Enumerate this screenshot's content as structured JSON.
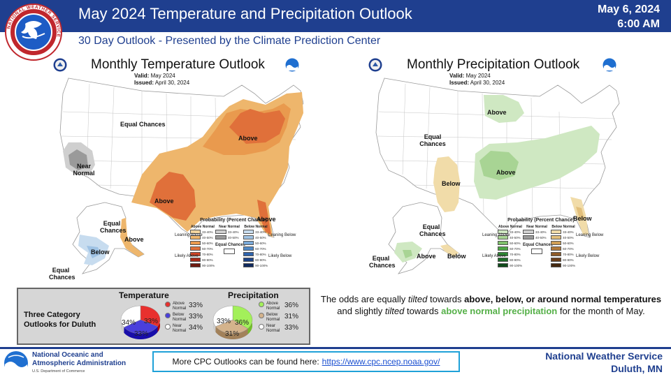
{
  "header": {
    "title": "May 2024 Temperature and Precipitation Outlook",
    "date": "May 6, 2024",
    "time": "6:00 AM",
    "subtitle": "30 Day Outlook - Presented by the Climate Prediction Center",
    "logo_text": "NATIONAL WEATHER SERVICE"
  },
  "temp_map": {
    "title": "Monthly Temperature Outlook",
    "valid_label": "Valid:",
    "valid_value": "May 2024",
    "issued_label": "Issued:",
    "issued_value": "April 30, 2024",
    "labels": {
      "equal_chances_w": "Equal Chances",
      "near_normal": "Near Normal",
      "above_ne": "Above",
      "above_s": "Above",
      "above_fl": "Above",
      "equal_chances_ak": "Equal Chances",
      "above_ak": "Above",
      "below_ak": "Below",
      "equal_chances_ak2": "Equal Chances"
    },
    "legend": {
      "title": "Probability (Percent Chance)",
      "col_above": "Above Normal",
      "col_near": "Near Normal",
      "col_below": "Below Normal",
      "leaning": "Leaning Above",
      "likely": "Likely Above",
      "leaning_b": "Leaning Below",
      "likely_b": "Likely Below",
      "equal": "Equal Chances",
      "rows": [
        "33-40%",
        "40-50%",
        "50-60%",
        "60-70%",
        "70-80%",
        "80-90%",
        "90-100%"
      ],
      "near_rows": [
        "33-40%",
        "40-50%"
      ],
      "above_colors": [
        "#f3d6a0",
        "#eeb66c",
        "#e99a4e",
        "#e0703a",
        "#cf4527",
        "#a82b1a",
        "#6e1a10"
      ],
      "below_colors": [
        "#c7dcef",
        "#9ec2e4",
        "#79a9d8",
        "#4f88c6",
        "#2f64ad",
        "#1d4488",
        "#112a5e"
      ],
      "near_colors": [
        "#cfcfcf",
        "#9a9a9a"
      ]
    }
  },
  "precip_map": {
    "title": "Monthly Precipitation Outlook",
    "valid_label": "Valid:",
    "valid_value": "May 2024",
    "issued_label": "Issued:",
    "issued_value": "April 30, 2024",
    "labels": {
      "above_n": "Above",
      "equal_chances_w": "Equal Chances",
      "above_c": "Above",
      "below_sw": "Below",
      "below_fl": "Below",
      "equal_chances_ak": "Equal Chances",
      "equal_chances_ak2": "Equal Chances",
      "above_ak": "Above",
      "below_ak": "Below"
    },
    "legend": {
      "title": "Probability (Percent Chance)",
      "col_above": "Above Normal",
      "col_near": "Near Normal",
      "col_below": "Below Normal",
      "leaning": "Leaning Above",
      "likely": "Likely Above",
      "leaning_b": "Leaning Below",
      "likely_b": "Likely Below",
      "equal": "Equal Chances",
      "rows": [
        "33-40%",
        "40-50%",
        "50-60%",
        "60-70%",
        "70-80%",
        "80-90%",
        "90-100%"
      ],
      "near_rows": [
        "33-40%",
        "40-50%"
      ],
      "above_colors": [
        "#cfe8c2",
        "#a8d494",
        "#7fbf6b",
        "#4ea646",
        "#2e8a34",
        "#1d6b28",
        "#0f4a1a"
      ],
      "below_colors": [
        "#f1dca9",
        "#e2bf7b",
        "#cf9e55",
        "#b27a3a",
        "#8d5a28",
        "#6a3f1b",
        "#45280f"
      ],
      "near_colors": [
        "#cfcfcf",
        "#9a9a9a"
      ]
    }
  },
  "categories": {
    "label_line1": "Three Category",
    "label_line2": "Outlooks for Duluth",
    "temperature": {
      "title": "Temperature",
      "above_label": "Above Normal",
      "below_label": "Below Normal",
      "near_label": "Near Normal",
      "above_pct": "33%",
      "below_pct": "33%",
      "near_pct": "34%",
      "above_value": 33,
      "below_value": 33,
      "near_value": 34,
      "above_color": "#e8302e",
      "below_color": "#4a3fdc",
      "near_color": "#ffffff"
    },
    "precipitation": {
      "title": "Precipitation",
      "above_label": "Above Normal",
      "below_label": "Below Normal",
      "near_label": "Near Normal",
      "above_pct": "36%",
      "below_pct": "31%",
      "near_pct": "33%",
      "above_value": 36,
      "below_value": 31,
      "near_value": 33,
      "above_color": "#a3f05a",
      "below_color": "#d4b38c",
      "near_color": "#ffffff"
    }
  },
  "summary": {
    "p1": "The odds are equally ",
    "tilted1": "tilted",
    "p2": " towards ",
    "bold1": "above, below, or around normal temperatures",
    "p3": " and slightly ",
    "tilted2": "tilted",
    "p4": " towards ",
    "green": "above normal precipitation",
    "p5": " for the month of May."
  },
  "footer": {
    "noaa_line1": "National Oceanic and",
    "noaa_line2": "Atmospheric Administration",
    "doc": "U.S. Department of Commerce",
    "cpc_text": "More CPC Outlooks can be found here:",
    "cpc_link": "https://www.cpc.ncep.noaa.gov/",
    "office_line1": "National Weather Service",
    "office_line2": "Duluth, MN"
  }
}
